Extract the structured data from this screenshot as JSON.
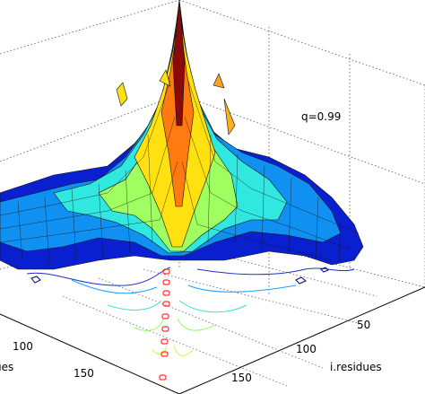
{
  "chart_data": {
    "type": "surface",
    "annotation": "q=0.99",
    "xlabel": "i.residues",
    "ylabel": "ues",
    "x_ticks": [
      "50",
      "100",
      "150"
    ],
    "y_ticks": [
      "100",
      "150"
    ],
    "grid": true,
    "colormap": "jet",
    "has_contour_projection": true
  }
}
